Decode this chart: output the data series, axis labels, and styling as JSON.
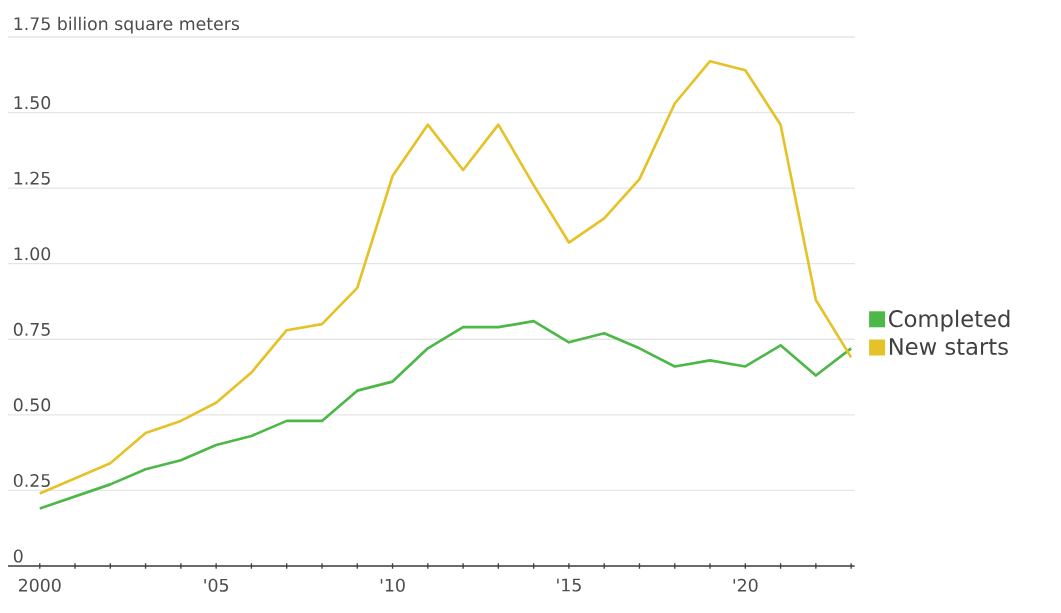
{
  "chart_data": {
    "type": "line",
    "x": [
      2000,
      2001,
      2002,
      2003,
      2004,
      2005,
      2006,
      2007,
      2008,
      2009,
      2010,
      2011,
      2012,
      2013,
      2014,
      2015,
      2016,
      2017,
      2018,
      2019,
      2020,
      2021,
      2022,
      2023
    ],
    "series": [
      {
        "name": "Completed",
        "color": "#4db848",
        "values": [
          0.19,
          0.23,
          0.27,
          0.32,
          0.35,
          0.4,
          0.43,
          0.48,
          0.48,
          0.58,
          0.61,
          0.72,
          0.79,
          0.79,
          0.81,
          0.74,
          0.77,
          0.72,
          0.66,
          0.68,
          0.66,
          0.73,
          0.63,
          0.72
        ]
      },
      {
        "name": "New starts",
        "color": "#e6c229",
        "values": [
          0.24,
          0.29,
          0.34,
          0.44,
          0.48,
          0.54,
          0.64,
          0.78,
          0.8,
          0.92,
          1.29,
          1.46,
          1.31,
          1.46,
          1.26,
          1.07,
          1.15,
          1.28,
          1.53,
          1.67,
          1.64,
          1.46,
          0.88,
          0.69
        ]
      }
    ],
    "xlim": [
      1999.1,
      2023.1
    ],
    "xticks": [
      {
        "value": 2000,
        "label": "2000"
      },
      {
        "value": 2001,
        "label": null
      },
      {
        "value": 2002,
        "label": null
      },
      {
        "value": 2003,
        "label": null
      },
      {
        "value": 2004,
        "label": null
      },
      {
        "value": 2005,
        "label": "'05"
      },
      {
        "value": 2006,
        "label": null
      },
      {
        "value": 2007,
        "label": null
      },
      {
        "value": 2008,
        "label": null
      },
      {
        "value": 2009,
        "label": null
      },
      {
        "value": 2010,
        "label": "'10"
      },
      {
        "value": 2011,
        "label": null
      },
      {
        "value": 2012,
        "label": null
      },
      {
        "value": 2013,
        "label": null
      },
      {
        "value": 2014,
        "label": null
      },
      {
        "value": 2015,
        "label": "'15"
      },
      {
        "value": 2016,
        "label": null
      },
      {
        "value": 2017,
        "label": null
      },
      {
        "value": 2018,
        "label": null
      },
      {
        "value": 2019,
        "label": null
      },
      {
        "value": 2020,
        "label": "'20"
      },
      {
        "value": 2021,
        "label": null
      },
      {
        "value": 2022,
        "label": null
      },
      {
        "value": 2023,
        "label": null
      }
    ],
    "ylim": [
      0,
      1.75
    ],
    "yticks": [
      0,
      0.25,
      {
        "value": 0.5,
        "label": "0.50"
      },
      0.75,
      {
        "value": 1,
        "label": "1.00"
      },
      1.25,
      {
        "value": 1.5,
        "label": "1.50"
      },
      {
        "value": 1.75,
        "label": "1.75 billion square meters"
      }
    ],
    "grid": "y",
    "legend": "right",
    "marker": "none",
    "line_style": "solid"
  }
}
